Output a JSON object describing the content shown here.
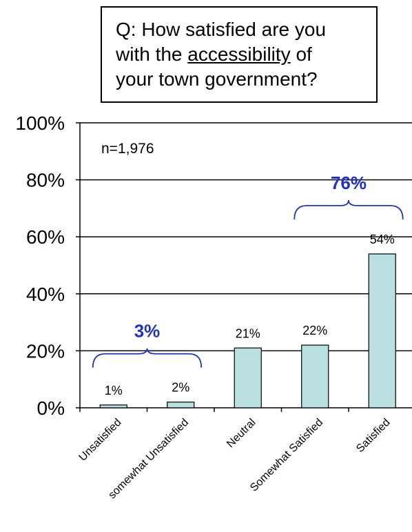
{
  "question": {
    "line1": "Q: How satisfied are you",
    "line2_pre": "with the ",
    "line2_underlined": "accessibility",
    "line2_post": " of",
    "line3": "your town government?"
  },
  "sample_note": "n=1,976",
  "chart_data": {
    "type": "bar",
    "categories": [
      "Unsatisfied",
      "somewhat Unsatisfied",
      "Neutral",
      "Somewhat Satisfied",
      "Satisfied"
    ],
    "values": [
      1,
      2,
      21,
      22,
      54
    ],
    "value_labels": [
      "1%",
      "2%",
      "21%",
      "22%",
      "54%"
    ],
    "y_ticks": [
      0,
      20,
      40,
      60,
      80,
      100
    ],
    "y_tick_labels": [
      "0%",
      "20%",
      "40%",
      "60%",
      "80%",
      "100%"
    ],
    "ylim": [
      0,
      100
    ],
    "grid": true,
    "bar_color": "#b9dfe0",
    "title": "",
    "xlabel": "",
    "ylabel": "",
    "groups": [
      {
        "label": "3%",
        "from_category": 0,
        "to_category": 1,
        "color": "#2233bb"
      },
      {
        "label": "76%",
        "from_category": 3,
        "to_category": 4,
        "color": "#2233bb"
      }
    ]
  }
}
